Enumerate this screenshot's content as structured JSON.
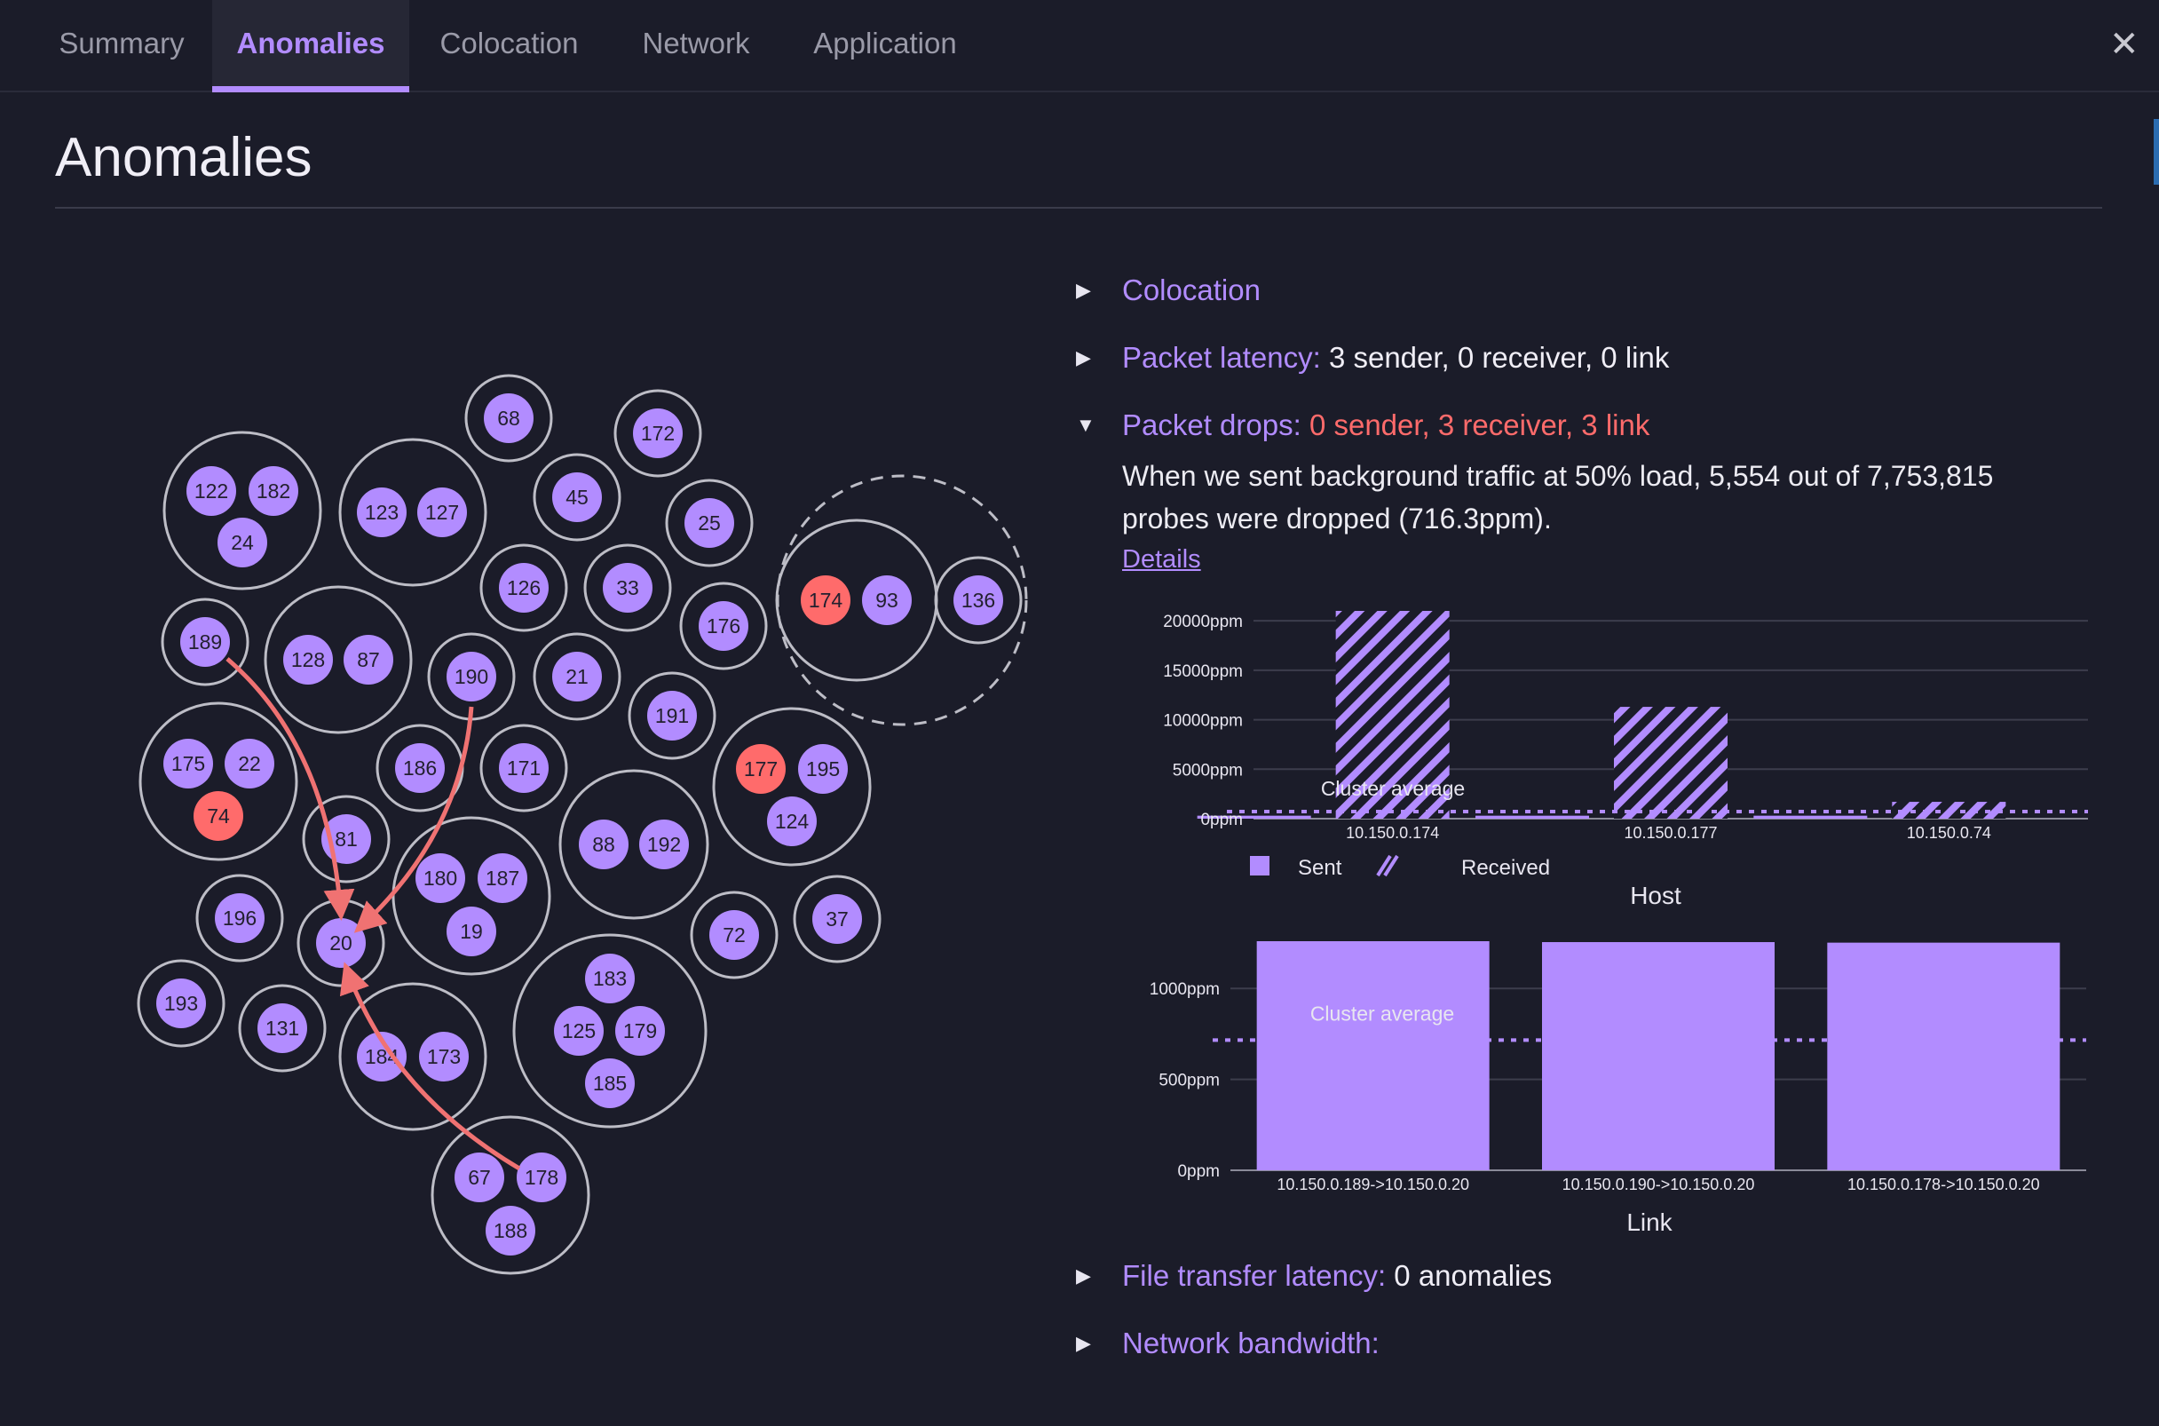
{
  "tabs": [
    {
      "label": "Summary",
      "active": false
    },
    {
      "label": "Anomalies",
      "active": true
    },
    {
      "label": "Colocation",
      "active": false
    },
    {
      "label": "Network",
      "active": false
    },
    {
      "label": "Application",
      "active": false
    }
  ],
  "close_icon": "close-icon",
  "page": {
    "title": "Anomalies"
  },
  "colors": {
    "accent": "#b28cff",
    "alert": "#ff6b6b",
    "background": "#1b1c29",
    "node": "#b28cff",
    "node_alert": "#ff6b6b"
  },
  "sections": {
    "colocation": {
      "label": "Colocation",
      "expanded": false
    },
    "packet_latency": {
      "label": "Packet latency:",
      "summary": "3 sender, 0 receiver, 0 link",
      "expanded": false
    },
    "packet_drops": {
      "label": "Packet drops:",
      "summary": "0 sender, 3 receiver, 3 link",
      "expanded": true,
      "description": "When we sent background traffic at 50% load, 5,554 out of 7,753,815 probes were dropped (716.3ppm).",
      "details_link": "Details"
    },
    "file_transfer_latency": {
      "label": "File transfer latency:",
      "summary": "0 anomalies",
      "expanded": false
    },
    "network_bandwidth": {
      "label": "Network bandwidth:",
      "summary": "",
      "expanded": false
    }
  },
  "map": {
    "nodes": [
      "122",
      "182",
      "24",
      "123",
      "127",
      "68",
      "172",
      "45",
      "25",
      "126",
      "33",
      "176",
      "174",
      "93",
      "136",
      "189",
      "128",
      "87",
      "190",
      "21",
      "191",
      "175",
      "22",
      "74",
      "186",
      "171",
      "177",
      "195",
      "124",
      "81",
      "180",
      "187",
      "19",
      "88",
      "192",
      "196",
      "20",
      "72",
      "37",
      "193",
      "131",
      "184",
      "173",
      "183",
      "125",
      "179",
      "185",
      "67",
      "178",
      "188"
    ],
    "alert_nodes": [
      "174",
      "177",
      "74"
    ],
    "flows": [
      {
        "from": "189",
        "to": "20"
      },
      {
        "from": "190",
        "to": "20"
      },
      {
        "from": "178",
        "to": "20"
      }
    ]
  },
  "chart_data": [
    {
      "type": "bar",
      "xlabel": "Host",
      "ylabel": "",
      "categories": [
        "10.150.0.174",
        "10.150.0.177",
        "10.150.0.74"
      ],
      "series": [
        {
          "name": "Sent",
          "values": [
            300,
            300,
            300
          ]
        },
        {
          "name": "Received",
          "values": [
            21000,
            11300,
            1700
          ]
        }
      ],
      "ylim": [
        0,
        21000
      ],
      "yticks": [
        0,
        5000,
        10000,
        15000,
        20000
      ],
      "ytick_labels": [
        "0ppm",
        "5000ppm",
        "10000ppm",
        "15000ppm",
        "20000ppm"
      ],
      "reference_line": {
        "label": "Cluster average",
        "value": 716.3
      },
      "legend": [
        "Sent",
        "Received"
      ],
      "legend_position": "bottom-left",
      "grid": true
    },
    {
      "type": "bar",
      "xlabel": "Link",
      "ylabel": "",
      "categories": [
        "10.150.0.189->10.150.0.20",
        "10.150.0.190->10.150.0.20",
        "10.150.0.178->10.150.0.20"
      ],
      "series": [
        {
          "name": "",
          "values": [
            1260,
            1255,
            1252
          ]
        }
      ],
      "ylim": [
        0,
        1260
      ],
      "yticks": [
        0,
        500,
        1000
      ],
      "ytick_labels": [
        "0ppm",
        "500ppm",
        "1000ppm"
      ],
      "reference_line": {
        "label": "Cluster average",
        "value": 716.3
      },
      "grid": true
    }
  ]
}
